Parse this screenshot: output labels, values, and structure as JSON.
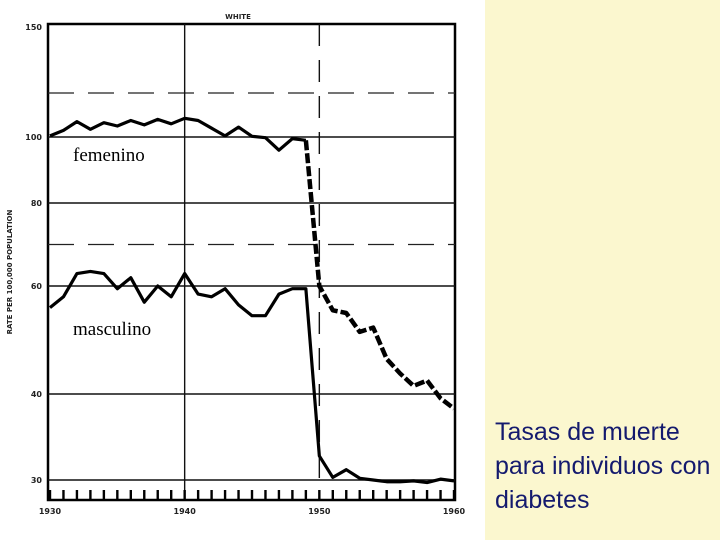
{
  "chart_data": {
    "type": "line",
    "title": "WHITE",
    "ylabel": "RATE PER 100,000 POPULATION",
    "xlabel": "",
    "xlim": [
      1930,
      1960
    ],
    "ylim": [
      30,
      150
    ],
    "x_ticks": [
      "1930",
      "1940",
      "1950",
      "1960"
    ],
    "y_ticks": [
      "150",
      "100",
      "80",
      "60",
      "40",
      "30"
    ],
    "series": [
      {
        "name": "femenino",
        "line_style": "solid-then-heavy-dashed",
        "points": [
          [
            1930,
            100.5
          ],
          [
            1931,
            103
          ],
          [
            1932,
            107
          ],
          [
            1933,
            103.5
          ],
          [
            1934,
            106.5
          ],
          [
            1935,
            105
          ],
          [
            1936,
            107.5
          ],
          [
            1937,
            105.5
          ],
          [
            1938,
            108
          ],
          [
            1939,
            106
          ],
          [
            1940,
            108.5
          ],
          [
            1941,
            107.5
          ],
          [
            1942,
            104
          ],
          [
            1943,
            100.5
          ],
          [
            1944,
            104.5
          ],
          [
            1945,
            100.3
          ],
          [
            1946,
            99.8
          ],
          [
            1947,
            96
          ],
          [
            1948,
            99.5
          ],
          [
            1949,
            99
          ],
          [
            1950,
            60
          ],
          [
            1951,
            55.5
          ],
          [
            1952,
            55
          ],
          [
            1953,
            51.5
          ],
          [
            1954,
            52.3
          ],
          [
            1955,
            46.5
          ],
          [
            1956,
            43.8
          ],
          [
            1957,
            41.5
          ],
          [
            1958,
            42.5
          ],
          [
            1959,
            39.5
          ],
          [
            1960,
            38.3
          ]
        ]
      },
      {
        "name": "masculino",
        "line_style": "solid",
        "points": [
          [
            1930,
            56
          ],
          [
            1931,
            58
          ],
          [
            1932,
            63
          ],
          [
            1933,
            63.5
          ],
          [
            1934,
            63
          ],
          [
            1935,
            59.5
          ],
          [
            1936,
            62
          ],
          [
            1937,
            57
          ],
          [
            1938,
            60
          ],
          [
            1939,
            58
          ],
          [
            1940,
            63
          ],
          [
            1941,
            58.5
          ],
          [
            1942,
            58
          ],
          [
            1943,
            59.5
          ],
          [
            1944,
            56.5
          ],
          [
            1945,
            54.5
          ],
          [
            1946,
            54.5
          ],
          [
            1947,
            58.5
          ],
          [
            1948,
            59.5
          ],
          [
            1949,
            59.5
          ],
          [
            1950,
            32.8
          ],
          [
            1951,
            30.3
          ],
          [
            1952,
            31.2
          ],
          [
            1953,
            30.2
          ],
          [
            1954,
            30
          ],
          [
            1955,
            29.8
          ],
          [
            1956,
            29.8
          ],
          [
            1957,
            29.9
          ],
          [
            1958,
            29.7
          ],
          [
            1959,
            30.1
          ],
          [
            1960,
            29.9
          ]
        ]
      }
    ]
  },
  "annotations": {
    "femenino": "femenino",
    "masculino": "masculino"
  },
  "caption": "Tasas de muerte para individuos con diabetes",
  "colors": {
    "panel_background": "#fbf7cf",
    "caption_text": "#141a6e",
    "ink": "#000000"
  }
}
